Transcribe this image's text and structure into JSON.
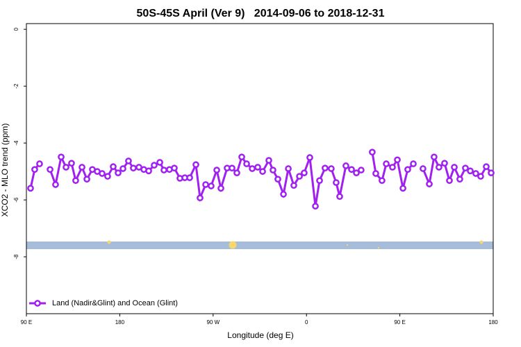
{
  "chart_data": {
    "type": "line",
    "title": "50S-45S April (Ver 9)   2014-09-06 to 2018-12-31",
    "x_label": "Longitude (deg E)",
    "y_label": "XCO2 - MLO trend (ppm)",
    "xlim": [
      90,
      540
    ],
    "xticks": [
      {
        "value": 90,
        "label": "90 E"
      },
      {
        "value": 180,
        "label": "180"
      },
      {
        "value": 270,
        "label": "90 W"
      },
      {
        "value": 360,
        "label": "0"
      },
      {
        "value": 450,
        "label": "90 E"
      },
      {
        "value": 540,
        "label": "180"
      }
    ],
    "ylim": [
      -10,
      0.2
    ],
    "yticks": [
      0,
      -2,
      -4,
      -6,
      -8
    ],
    "legend": "bottom-left",
    "series": [
      {
        "name": "Land (Nadir&Glint) and Ocean (Glint)",
        "color": "#a020f0",
        "x": [
          94.0,
          98.0,
          102.7,
          107.4,
          112.8,
          118.1,
          123.5,
          128.2,
          133.5,
          137.5,
          143.6,
          148.3,
          153.6,
          158.3,
          163.0,
          168.3,
          173.7,
          178.4,
          183.1,
          188.4,
          193.1,
          198.5,
          203.2,
          207.9,
          213.2,
          218.6,
          222.6,
          227.9,
          232.6,
          238.0,
          242.7,
          247.4,
          253.4,
          257.4,
          262.8,
          268.1,
          273.5,
          277.5,
          283.5,
          288.2,
          292.9,
          297.6,
          302.3,
          307.7,
          313.0,
          317.7,
          323.7,
          327.7,
          332.4,
          337.8,
          342.5,
          347.8,
          353.2,
          357.8,
          363.2,
          368.6,
          372.6,
          377.9,
          383.9,
          388.6,
          392.0,
          398.0,
          403.4,
          408.1,
          412.7,
          418.1,
          423.4,
          426.8,
          432.8,
          436.9,
          442.9,
          447.6,
          453.0,
          457.6,
          463.0,
          467.6,
          472.3,
          478.4,
          483.0,
          487.7,
          493.1,
          497.8,
          502.5,
          507.8,
          513.2,
          517.9,
          523.2,
          527.9,
          533.3,
          538.0
        ],
        "values": [
          -5.59,
          -4.93,
          -4.73,
          null,
          -4.93,
          -5.46,
          -4.49,
          -4.85,
          -4.71,
          -5.32,
          -4.85,
          -5.27,
          -4.93,
          -5.0,
          -5.07,
          -5.17,
          -4.83,
          -5.05,
          -4.9,
          -4.63,
          -4.88,
          -4.85,
          -4.93,
          -4.98,
          -4.78,
          -4.68,
          -4.95,
          -4.93,
          -4.88,
          -5.24,
          -5.22,
          -5.22,
          -4.76,
          -5.93,
          -5.46,
          -5.51,
          -4.95,
          -5.59,
          -4.88,
          -4.88,
          -5.05,
          -4.49,
          -4.73,
          -4.9,
          -4.85,
          -5.0,
          -4.61,
          -4.95,
          -5.27,
          -5.8,
          -4.9,
          -5.49,
          -5.17,
          -5.05,
          -4.51,
          -6.22,
          -5.32,
          -4.88,
          -4.9,
          -5.39,
          -5.88,
          -4.8,
          -4.93,
          -5.05,
          -4.95,
          null,
          -4.32,
          -5.07,
          -5.32,
          -4.73,
          -4.85,
          -4.59,
          -5.59,
          -4.93,
          -4.73,
          null,
          -4.9,
          -5.44,
          -4.49,
          -4.85,
          -4.71,
          -5.32,
          -4.85,
          -5.27,
          -4.88,
          -4.98,
          -5.07,
          -5.17,
          -4.83,
          -5.05
        ]
      }
    ]
  }
}
